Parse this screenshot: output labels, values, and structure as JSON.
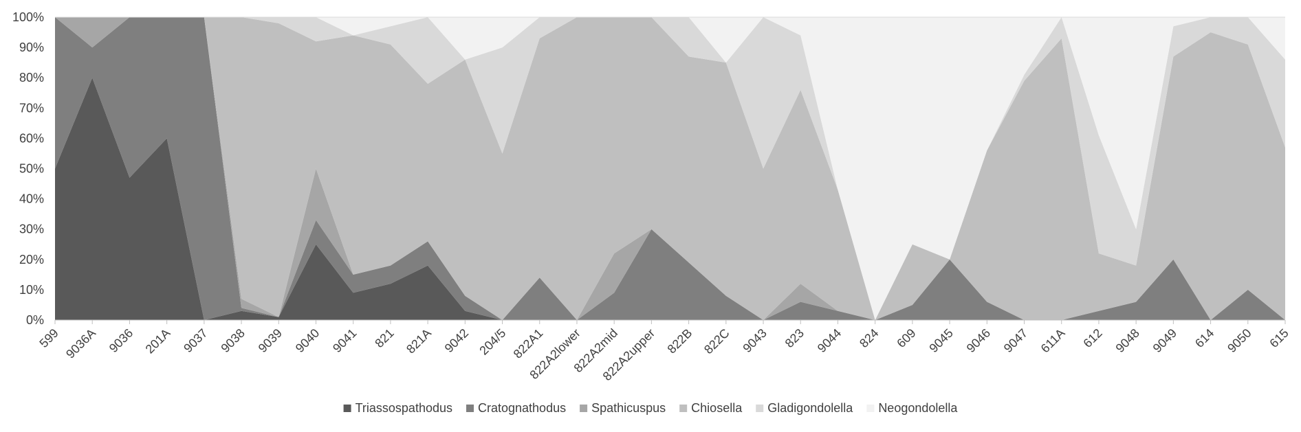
{
  "chart_data": {
    "type": "area",
    "stacked": "percent",
    "title": "",
    "xlabel": "",
    "ylabel": "",
    "ylim": [
      0,
      100
    ],
    "y_ticks": [
      "0%",
      "10%",
      "20%",
      "30%",
      "40%",
      "50%",
      "60%",
      "70%",
      "80%",
      "90%",
      "100%"
    ],
    "grid": "off",
    "legend_position": "bottom",
    "categories": [
      "599",
      "9036A",
      "9036",
      "201A",
      "9037",
      "9038",
      "9039",
      "9040",
      "9041",
      "821",
      "821A",
      "9042",
      "204/5",
      "822A1",
      "822A2lower",
      "822A2mid",
      "822A2upper",
      "822B",
      "822C",
      "9043",
      "823",
      "9044",
      "824",
      "609",
      "9045",
      "9046",
      "9047",
      "611A",
      "612",
      "9048",
      "9049",
      "614",
      "9050",
      "615"
    ],
    "series": [
      {
        "name": "Triassospathodus",
        "color": "#595959",
        "values": [
          50,
          80,
          47,
          60,
          0,
          3,
          1,
          25,
          9,
          12,
          18,
          3,
          0,
          0,
          0,
          0,
          0,
          0,
          0,
          0,
          0,
          0,
          0,
          0,
          0,
          0,
          0,
          0,
          0,
          0,
          0,
          0,
          0,
          0
        ]
      },
      {
        "name": "Cratognathodus",
        "color": "#7f7f7f",
        "values": [
          50,
          10,
          53,
          40,
          100,
          1,
          0,
          8,
          6,
          6,
          8,
          5,
          0,
          14,
          0,
          9,
          30,
          19,
          8,
          0,
          6,
          3,
          0,
          5,
          20,
          6,
          0,
          0,
          3,
          6,
          20,
          0,
          10,
          0
        ]
      },
      {
        "name": "Spathicuspus",
        "color": "#a6a6a6",
        "values": [
          0,
          10,
          0,
          0,
          0,
          3,
          0,
          17,
          0,
          0,
          0,
          0,
          0,
          0,
          0,
          13,
          0,
          0,
          0,
          0,
          6,
          0,
          0,
          0,
          0,
          0,
          0,
          0,
          0,
          0,
          0,
          0,
          0,
          0
        ]
      },
      {
        "name": "Chiosella",
        "color": "#bfbfbf",
        "values": [
          0,
          0,
          0,
          0,
          0,
          93,
          97,
          42,
          79,
          73,
          52,
          78,
          55,
          79,
          100,
          78,
          70,
          68,
          77,
          50,
          64,
          40,
          0,
          20,
          0,
          50,
          79,
          93,
          19,
          12,
          67,
          95,
          81,
          57
        ]
      },
      {
        "name": "Gladigondolella",
        "color": "#d9d9d9",
        "values": [
          0,
          0,
          0,
          0,
          0,
          0,
          2,
          8,
          0,
          6,
          22,
          0,
          35,
          7,
          0,
          0,
          0,
          13,
          0,
          50,
          18,
          0,
          0,
          0,
          0,
          0,
          2,
          7,
          39,
          12,
          10,
          5,
          9,
          29
        ]
      },
      {
        "name": "Neogondolella",
        "color": "#f2f2f2",
        "values": [
          0,
          0,
          0,
          0,
          0,
          0,
          0,
          0,
          6,
          3,
          0,
          14,
          10,
          0,
          0,
          0,
          0,
          0,
          15,
          0,
          6,
          57,
          100,
          75,
          80,
          44,
          19,
          0,
          39,
          70,
          3,
          0,
          0,
          14
        ]
      }
    ]
  }
}
